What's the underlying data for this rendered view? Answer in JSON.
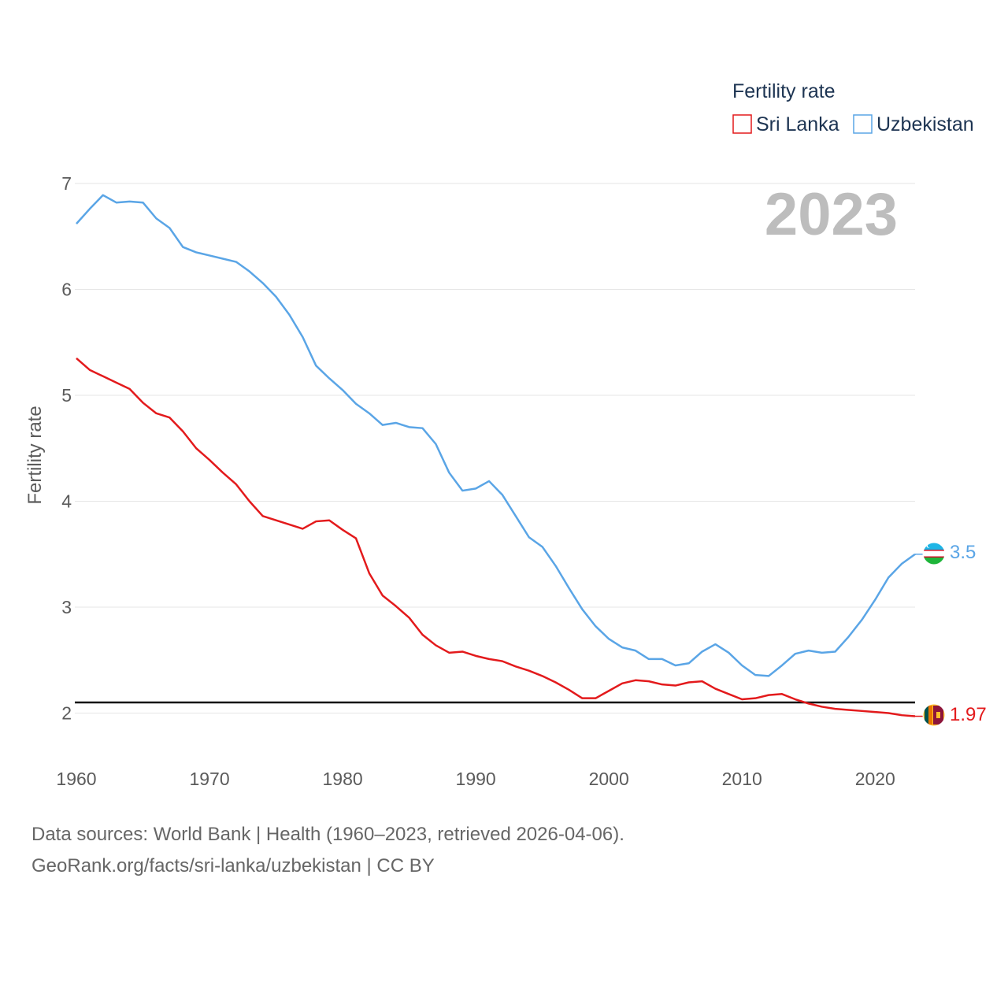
{
  "chart_data": {
    "type": "line",
    "legend_title": "Fertility rate",
    "ylabel": "Fertility rate",
    "year_label": "2023",
    "xlim": [
      1960,
      2023
    ],
    "ylim": [
      1.7,
      7.0
    ],
    "yticks": [
      2,
      3,
      4,
      5,
      6,
      7
    ],
    "xticks": [
      1960,
      1970,
      1980,
      1990,
      2000,
      2010,
      2020
    ],
    "reference_line": 2.1,
    "x": [
      1960,
      1961,
      1962,
      1963,
      1964,
      1965,
      1966,
      1967,
      1968,
      1969,
      1970,
      1971,
      1972,
      1973,
      1974,
      1975,
      1976,
      1977,
      1978,
      1979,
      1980,
      1981,
      1982,
      1983,
      1984,
      1985,
      1986,
      1987,
      1988,
      1989,
      1990,
      1991,
      1992,
      1993,
      1994,
      1995,
      1996,
      1997,
      1998,
      1999,
      2000,
      2001,
      2002,
      2003,
      2004,
      2005,
      2006,
      2007,
      2008,
      2009,
      2010,
      2011,
      2012,
      2013,
      2014,
      2015,
      2016,
      2017,
      2018,
      2019,
      2020,
      2021,
      2022,
      2023
    ],
    "series": [
      {
        "name": "Sri Lanka",
        "color": "#e31a1c",
        "end_label": "1.97",
        "values": [
          5.35,
          5.24,
          5.18,
          5.12,
          5.06,
          4.93,
          4.83,
          4.79,
          4.66,
          4.5,
          4.39,
          4.27,
          4.16,
          4.0,
          3.86,
          3.82,
          3.78,
          3.74,
          3.81,
          3.82,
          3.73,
          3.65,
          3.32,
          3.11,
          3.01,
          2.9,
          2.74,
          2.64,
          2.57,
          2.58,
          2.54,
          2.51,
          2.49,
          2.44,
          2.4,
          2.35,
          2.29,
          2.22,
          2.14,
          2.14,
          2.21,
          2.28,
          2.31,
          2.3,
          2.27,
          2.26,
          2.29,
          2.3,
          2.23,
          2.18,
          2.13,
          2.14,
          2.17,
          2.18,
          2.13,
          2.09,
          2.06,
          2.04,
          2.03,
          2.02,
          2.01,
          2.0,
          1.98,
          1.97
        ]
      },
      {
        "name": "Uzbekistan",
        "color": "#5aa5e6",
        "end_label": "3.5",
        "values": [
          6.62,
          6.76,
          6.89,
          6.82,
          6.83,
          6.82,
          6.67,
          6.58,
          6.4,
          6.35,
          6.32,
          6.29,
          6.26,
          6.17,
          6.06,
          5.93,
          5.76,
          5.55,
          5.28,
          5.16,
          5.05,
          4.92,
          4.83,
          4.72,
          4.74,
          4.7,
          4.69,
          4.54,
          4.27,
          4.1,
          4.12,
          4.19,
          4.06,
          3.86,
          3.66,
          3.57,
          3.39,
          3.18,
          2.98,
          2.82,
          2.7,
          2.62,
          2.59,
          2.51,
          2.51,
          2.45,
          2.47,
          2.58,
          2.65,
          2.57,
          2.45,
          2.36,
          2.35,
          2.45,
          2.56,
          2.59,
          2.57,
          2.58,
          2.72,
          2.88,
          3.07,
          3.28,
          3.41,
          3.5
        ]
      }
    ]
  },
  "source": {
    "line1": "Data sources: World Bank | Health (1960–2023, retrieved 2026-04-06).",
    "line2": "GeoRank.org/facts/sri-lanka/uzbekistan | CC BY"
  }
}
